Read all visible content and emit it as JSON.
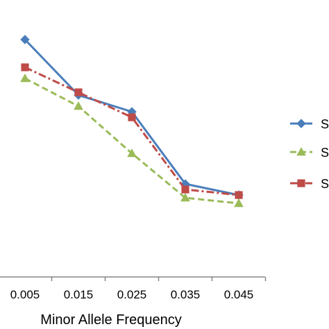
{
  "chart_data": {
    "type": "line",
    "categories": [
      "0.005",
      "0.015",
      "0.025",
      "0.035",
      "0.045"
    ],
    "xlabel": "Minor Allele Frequency",
    "ylabel": "",
    "series": [
      {
        "name": "S",
        "color": "#4a7ebb",
        "line_style": "solid",
        "marker": "diamond",
        "values": [
          0.855,
          0.655,
          0.595,
          0.335,
          0.295
        ]
      },
      {
        "name": "S",
        "color": "#9bbb59",
        "line_style": "dashed",
        "marker": "triangle",
        "values": [
          0.715,
          0.615,
          0.445,
          0.285,
          0.265
        ]
      },
      {
        "name": "S",
        "color": "#be4b48",
        "line_style": "dash-dot",
        "marker": "square",
        "values": [
          0.755,
          0.665,
          0.575,
          0.315,
          0.295
        ]
      }
    ],
    "ylim": [
      0,
      1
    ],
    "grid": false,
    "legend_position": "right"
  }
}
